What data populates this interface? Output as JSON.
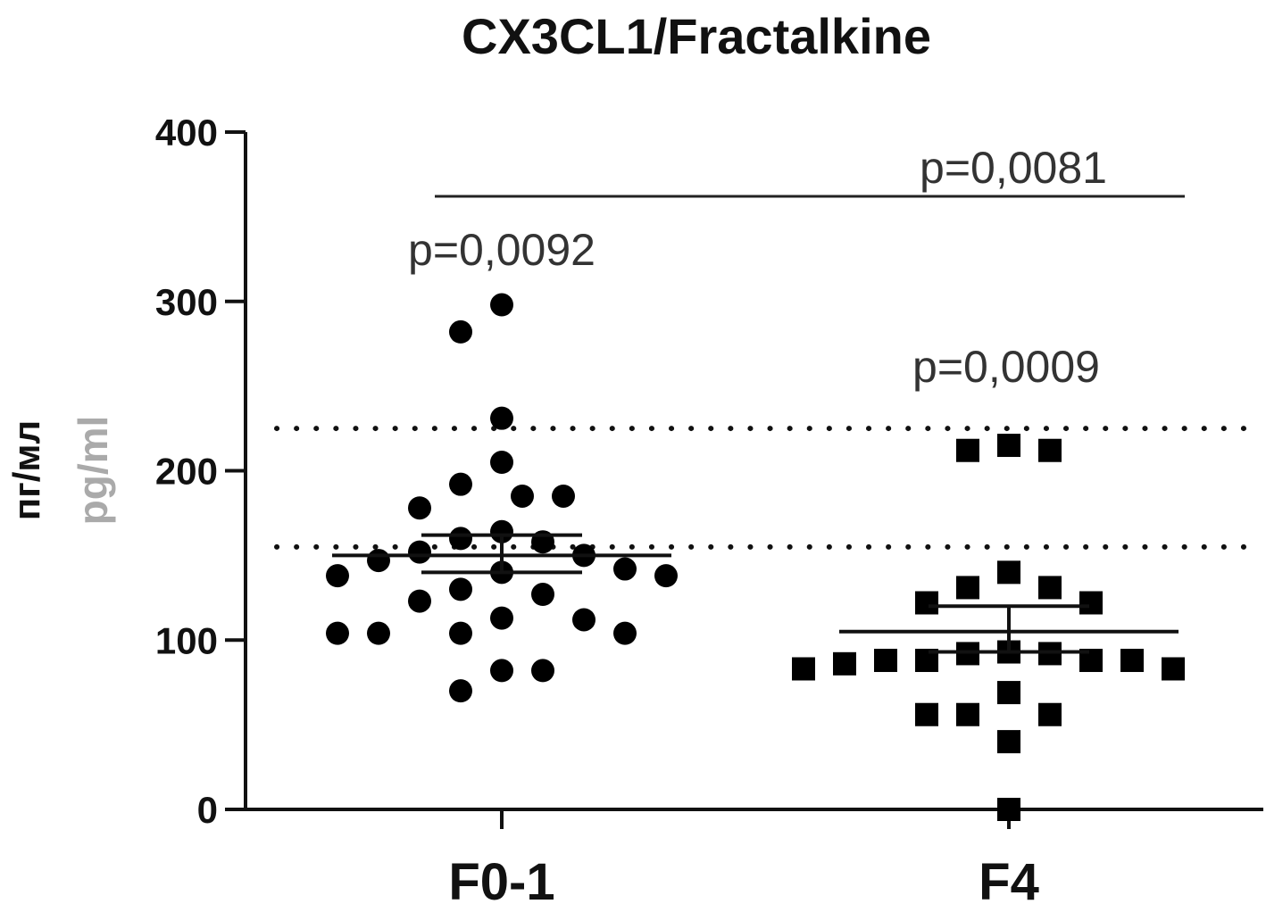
{
  "chart_data": {
    "type": "scatter",
    "title": "CX3CL1/Fractalkine",
    "ylabel_ru": "пг/мл",
    "ylabel_en": "pg/ml",
    "ylim": [
      0,
      400
    ],
    "yticks": [
      "0",
      "100",
      "200",
      "300",
      "400"
    ],
    "categories": [
      "F0-1",
      "F4"
    ],
    "reference_lines": [
      155,
      225
    ],
    "series": [
      {
        "category": "F0-1",
        "marker": "circle",
        "values": [
          298,
          282,
          231,
          205,
          192,
          185,
          185,
          178,
          164,
          160,
          158,
          152,
          150,
          147,
          142,
          140,
          138,
          138,
          130,
          127,
          123,
          113,
          112,
          104,
          104,
          104,
          104,
          82,
          82,
          70
        ],
        "mean": 150,
        "sem_upper": 162,
        "sem_lower": 140
      },
      {
        "category": "F4",
        "marker": "square",
        "values": [
          215,
          212,
          212,
          140,
          131,
          131,
          122,
          122,
          93,
          92,
          92,
          88,
          88,
          88,
          88,
          86,
          83,
          83,
          69,
          56,
          56,
          56,
          40,
          0
        ],
        "mean": 105,
        "sem_upper": 120,
        "sem_lower": 93
      }
    ],
    "annotations": [
      {
        "text": "p=0,0092",
        "at": "F0-1"
      },
      {
        "text": "p=0,0009",
        "at": "F4"
      },
      {
        "text": "p=0,0081",
        "at": "bracket"
      }
    ]
  }
}
